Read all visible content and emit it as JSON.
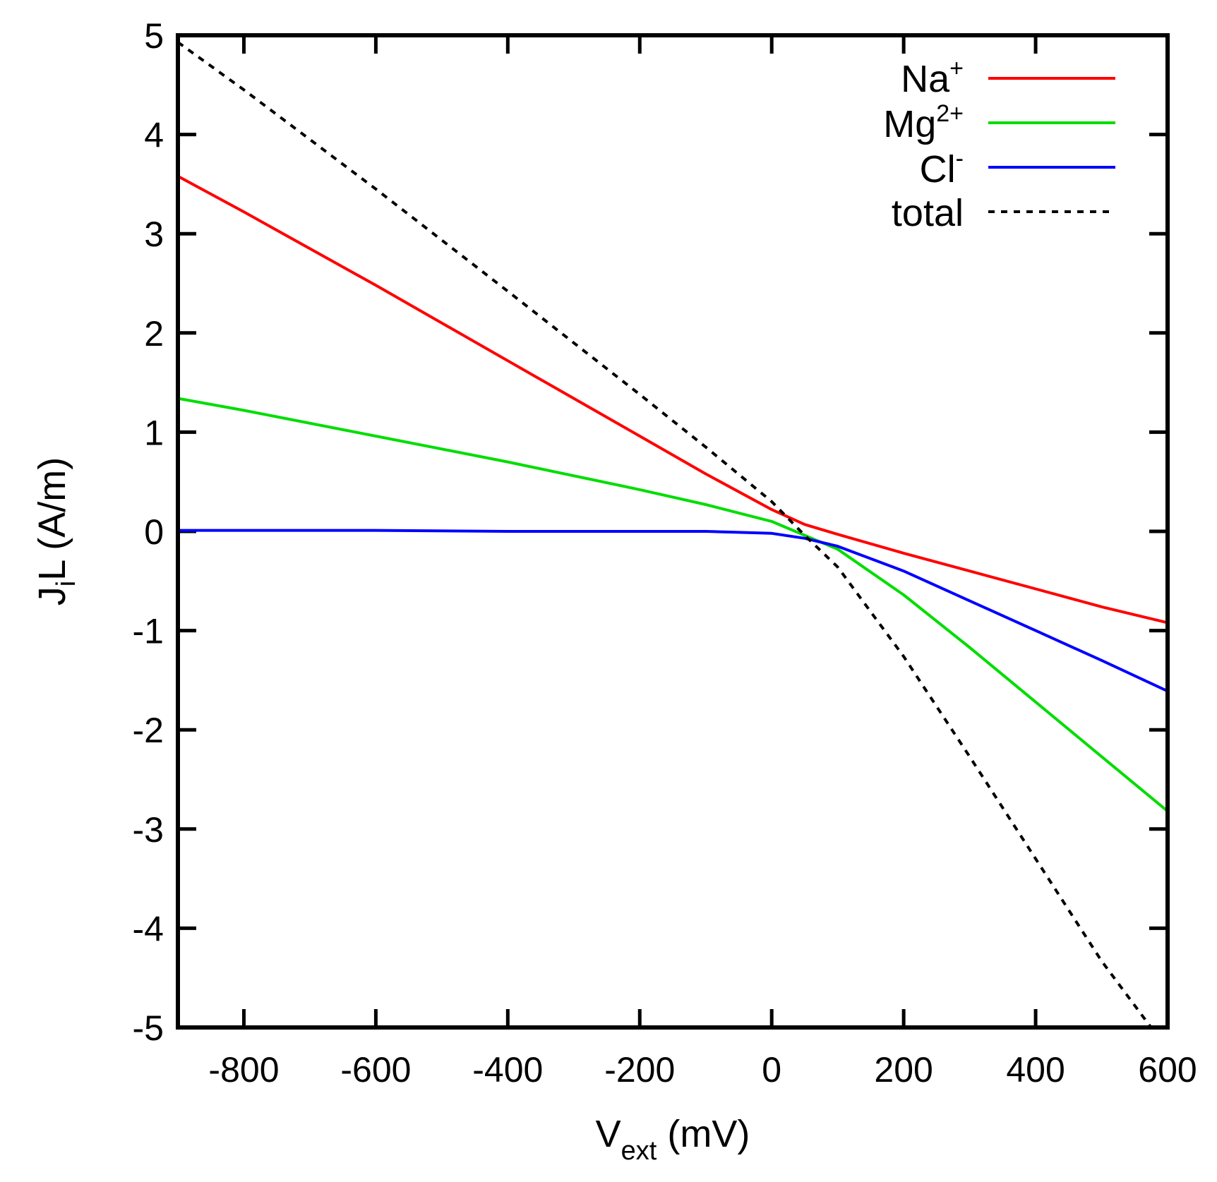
{
  "chart_data": {
    "type": "line",
    "title": "",
    "xlabel": {
      "main": "V",
      "sub": "ext",
      "rest": " (mV)"
    },
    "ylabel": {
      "main": "J",
      "sub": "i",
      "rest": "L (A/m)"
    },
    "xlim": [
      -900,
      600
    ],
    "ylim": [
      -5,
      5
    ],
    "grid": false,
    "legend_position": "top-right",
    "x_ticks": [
      -800,
      -600,
      -400,
      -200,
      0,
      200,
      400,
      600
    ],
    "x_tick_labels": [
      "-800",
      "-600",
      "-400",
      "-200",
      "0",
      "200",
      "400",
      "600"
    ],
    "y_ticks": [
      -5,
      -4,
      -3,
      -2,
      -1,
      0,
      1,
      2,
      3,
      4,
      5
    ],
    "y_tick_labels": [
      "-5",
      "-4",
      "-3",
      "-2",
      "-1",
      "0",
      "1",
      "2",
      "3",
      "4",
      "5"
    ],
    "series": [
      {
        "name": "Na",
        "superscript": "+",
        "color": "#ff0000",
        "dash": "solid",
        "x": [
          -900,
          -800,
          -600,
          -400,
          -200,
          -100,
          0,
          50,
          100,
          200,
          300,
          400,
          500,
          600
        ],
        "y": [
          3.58,
          3.22,
          2.48,
          1.72,
          0.96,
          0.58,
          0.22,
          0.07,
          -0.03,
          -0.22,
          -0.4,
          -0.58,
          -0.76,
          -0.92
        ]
      },
      {
        "name": "Mg",
        "superscript": "2+",
        "color": "#00dd00",
        "dash": "solid",
        "x": [
          -900,
          -800,
          -600,
          -400,
          -200,
          -100,
          0,
          50,
          100,
          200,
          300,
          400,
          500,
          600
        ],
        "y": [
          1.34,
          1.22,
          0.96,
          0.7,
          0.42,
          0.27,
          0.1,
          -0.04,
          -0.18,
          -0.64,
          -1.17,
          -1.72,
          -2.27,
          -2.82
        ]
      },
      {
        "name": "Cl",
        "superscript": "-",
        "color": "#0000ff",
        "dash": "solid",
        "x": [
          -900,
          -600,
          -400,
          -200,
          -100,
          -50,
          0,
          50,
          100,
          200,
          300,
          400,
          500,
          600
        ],
        "y": [
          0.01,
          0.01,
          0.0,
          0.0,
          0.0,
          -0.01,
          -0.02,
          -0.07,
          -0.15,
          -0.4,
          -0.7,
          -1.0,
          -1.3,
          -1.61
        ]
      },
      {
        "name": "total",
        "superscript": "",
        "color": "#000000",
        "dash": "dashed",
        "x": [
          -900,
          -800,
          -600,
          -400,
          -200,
          -100,
          0,
          50,
          100,
          200,
          300,
          400,
          500,
          575
        ],
        "y": [
          4.93,
          4.45,
          3.45,
          2.42,
          1.38,
          0.85,
          0.3,
          -0.04,
          -0.36,
          -1.26,
          -2.27,
          -3.3,
          -4.33,
          -5.0
        ]
      }
    ]
  }
}
